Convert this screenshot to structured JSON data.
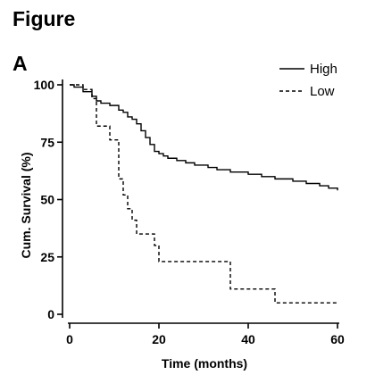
{
  "figure": {
    "title": "Figure",
    "panel_letter": "A"
  },
  "chart_data": {
    "type": "line",
    "step": true,
    "xlabel": "Time (months)",
    "ylabel": "Cum. Survival (%)",
    "xlim": [
      0,
      60
    ],
    "ylim": [
      0,
      100
    ],
    "x_ticks": [
      0,
      20,
      40,
      60
    ],
    "y_ticks": [
      0,
      25,
      50,
      75,
      100
    ],
    "grid": false,
    "legend_position": "top-right",
    "series": [
      {
        "name": "High",
        "line_style": "solid",
        "color": "#000000",
        "points": [
          [
            0,
            100
          ],
          [
            1,
            99
          ],
          [
            3,
            97
          ],
          [
            5,
            95
          ],
          [
            6,
            93
          ],
          [
            7,
            92
          ],
          [
            9,
            91
          ],
          [
            11,
            89
          ],
          [
            12,
            88
          ],
          [
            13,
            86
          ],
          [
            14,
            85
          ],
          [
            15,
            83
          ],
          [
            16,
            80
          ],
          [
            17,
            77
          ],
          [
            18,
            74
          ],
          [
            19,
            71
          ],
          [
            20,
            70
          ],
          [
            21,
            69
          ],
          [
            22,
            68
          ],
          [
            24,
            67
          ],
          [
            26,
            66
          ],
          [
            28,
            65
          ],
          [
            31,
            64
          ],
          [
            33,
            63
          ],
          [
            36,
            62
          ],
          [
            40,
            61
          ],
          [
            43,
            60
          ],
          [
            46,
            59
          ],
          [
            50,
            58
          ],
          [
            53,
            57
          ],
          [
            56,
            56
          ],
          [
            58,
            55
          ],
          [
            60,
            54
          ]
        ]
      },
      {
        "name": "Low",
        "line_style": "dashed",
        "color": "#000000",
        "points": [
          [
            0,
            100
          ],
          [
            3,
            98
          ],
          [
            5,
            94
          ],
          [
            6,
            82
          ],
          [
            9,
            76
          ],
          [
            11,
            59
          ],
          [
            12,
            52
          ],
          [
            13,
            46
          ],
          [
            14,
            41
          ],
          [
            15,
            35
          ],
          [
            17,
            35
          ],
          [
            19,
            30
          ],
          [
            20,
            23
          ],
          [
            36,
            11
          ],
          [
            46,
            5
          ],
          [
            60,
            5
          ]
        ]
      }
    ]
  }
}
